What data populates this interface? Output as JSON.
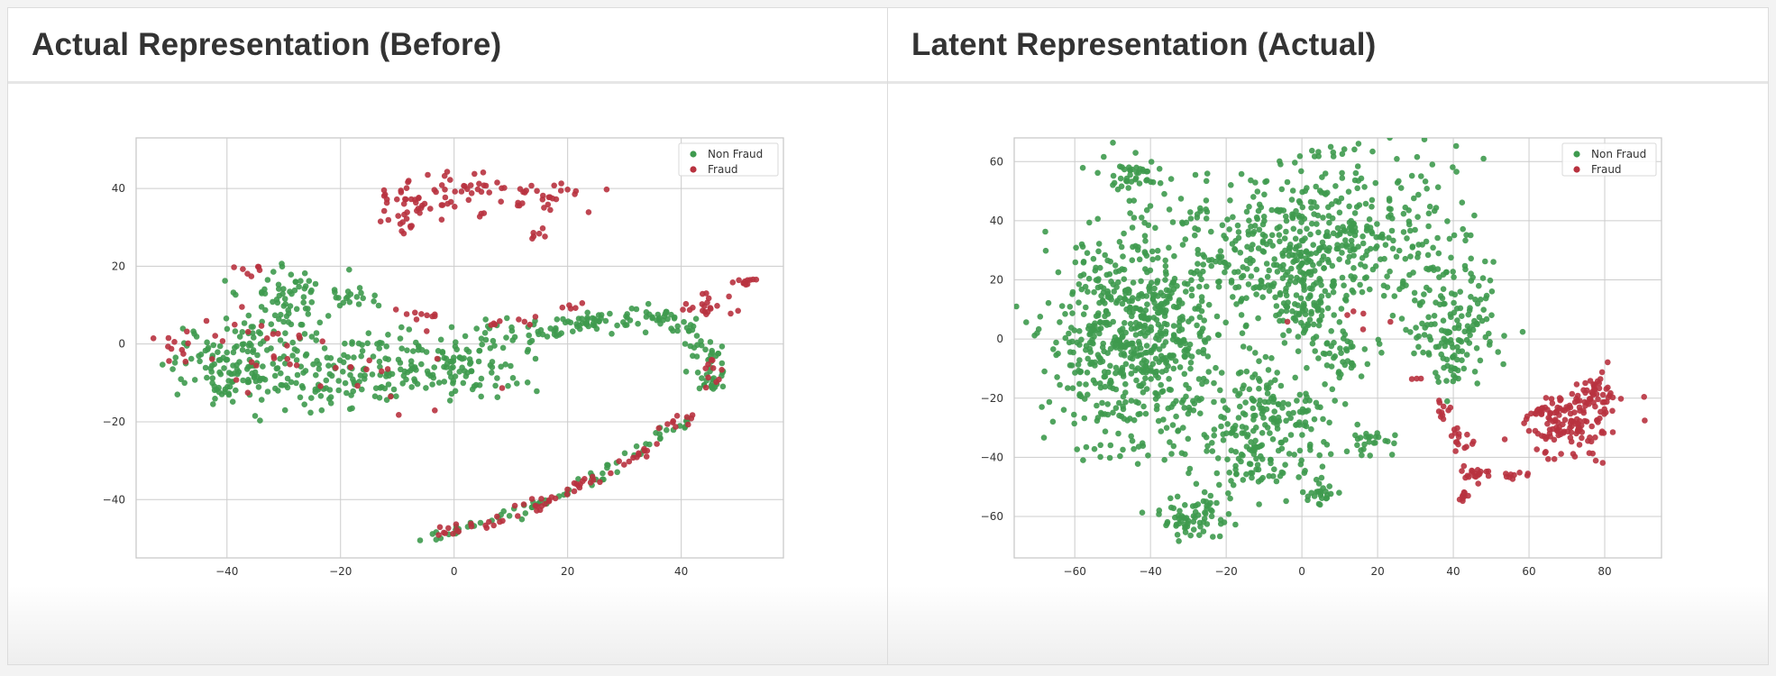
{
  "panels": [
    {
      "title": "Actual Representation (Before)"
    },
    {
      "title": "Latent Representation (Actual)"
    }
  ],
  "colors": {
    "non_fraud": "#3e9a4e",
    "fraud": "#b8323f",
    "grid": "#cccccc",
    "axes": "#c6c6c6"
  },
  "chart_data": [
    {
      "type": "scatter",
      "title": "",
      "xlabel": "",
      "ylabel": "",
      "xlim": [
        -56,
        58
      ],
      "ylim": [
        -55,
        53
      ],
      "xticks": [
        -40,
        -20,
        0,
        20,
        40
      ],
      "yticks": [
        -40,
        -20,
        0,
        20,
        40
      ],
      "grid": true,
      "legend": "top-right",
      "series": [
        {
          "name": "Non Fraud",
          "color": "#3e9a4e",
          "clusters": [
            {
              "cx": -40,
              "cy": -6,
              "sx": 5,
              "sy": 5,
              "n": 120
            },
            {
              "cx": -32,
              "cy": 7,
              "sx": 5,
              "sy": 5,
              "n": 60
            },
            {
              "cx": -28,
              "cy": 15,
              "sx": 3,
              "sy": 3,
              "n": 25
            },
            {
              "cx": -22,
              "cy": -8,
              "sx": 7,
              "sy": 5,
              "n": 100
            },
            {
              "cx": -18,
              "cy": 12,
              "sx": 3,
              "sy": 2,
              "n": 20
            },
            {
              "cx": -10,
              "cy": -6,
              "sx": 4,
              "sy": 4,
              "n": 60
            },
            {
              "cx": 0,
              "cy": -4,
              "sx": 4,
              "sy": 4,
              "n": 60
            },
            {
              "cx": 8,
              "cy": -3,
              "sx": 3,
              "sy": 5,
              "n": 40
            }
          ],
          "curves": [
            {
              "pts": [
                [
                  13,
                  2
                ],
                [
                  20,
                  4
                ],
                [
                  28,
                  7
                ],
                [
                  36,
                  7
                ],
                [
                  42,
                  4
                ],
                [
                  46,
                  -4
                ],
                [
                  45,
                  -12
                ]
              ],
              "n": 140,
              "jitter": 1.6
            },
            {
              "pts": [
                [
                  -5,
                  -50
                ],
                [
                  8,
                  -45
                ],
                [
                  20,
                  -38
                ],
                [
                  30,
                  -30
                ],
                [
                  36,
                  -24
                ],
                [
                  42,
                  -20
                ]
              ],
              "n": 70,
              "jitter": 0.8
            }
          ]
        },
        {
          "name": "Fraud",
          "color": "#b8323f",
          "clusters": [
            {
              "cx": -8,
              "cy": 35,
              "sx": 3.5,
              "sy": 4,
              "n": 45
            },
            {
              "cx": 2,
              "cy": 40,
              "sx": 3,
              "sy": 3,
              "n": 30
            },
            {
              "cx": 15,
              "cy": 38,
              "sx": 4,
              "sy": 2,
              "n": 30
            },
            {
              "cx": 15,
              "cy": 28,
              "sx": 0.8,
              "sy": 1,
              "n": 6
            },
            {
              "cx": -6,
              "cy": 7,
              "sx": 2,
              "sy": 1.5,
              "n": 10
            },
            {
              "cx": 10,
              "cy": 5,
              "sx": 3,
              "sy": 1,
              "n": 8
            },
            {
              "cx": 20,
              "cy": 10,
              "sx": 2,
              "sy": 1,
              "n": 5
            },
            {
              "cx": -50,
              "cy": 0,
              "sx": 1.5,
              "sy": 2,
              "n": 10
            },
            {
              "cx": -36,
              "cy": 20,
              "sx": 2,
              "sy": 1,
              "n": 6
            },
            {
              "cx": -32,
              "cy": 0,
              "sx": 8,
              "sy": 7,
              "n": 25
            },
            {
              "cx": -15,
              "cy": -7,
              "sx": 8,
              "sy": 6,
              "n": 15
            },
            {
              "cx": 45,
              "cy": 9,
              "sx": 3,
              "sy": 2,
              "n": 20
            },
            {
              "cx": 51,
              "cy": 16,
              "sx": 1.5,
              "sy": 1,
              "n": 12
            },
            {
              "cx": 40,
              "cy": -20,
              "sx": 2,
              "sy": 1.5,
              "n": 10
            }
          ],
          "curves": [
            {
              "pts": [
                [
                  -3,
                  -49
                ],
                [
                  8,
                  -45
                ],
                [
                  20,
                  -38
                ],
                [
                  30,
                  -31
                ],
                [
                  36,
                  -25
                ]
              ],
              "n": 60,
              "jitter": 0.7
            },
            {
              "pts": [
                [
                  44,
                  -4
                ],
                [
                  46,
                  -8
                ],
                [
                  45,
                  -12
                ]
              ],
              "n": 10,
              "jitter": 1.0
            }
          ]
        }
      ]
    },
    {
      "type": "scatter",
      "title": "",
      "xlabel": "",
      "ylabel": "",
      "xlim": [
        -76,
        95
      ],
      "ylim": [
        -74,
        68
      ],
      "xticks": [
        -60,
        -40,
        -20,
        0,
        20,
        40,
        60,
        80
      ],
      "yticks": [
        -60,
        -40,
        -20,
        0,
        20,
        40,
        60
      ],
      "grid": true,
      "legend": "top-right",
      "series": [
        {
          "name": "Non Fraud",
          "color": "#3e9a4e",
          "clusters": [
            {
              "cx": -45,
              "cy": 0,
              "sx": 11,
              "sy": 18,
              "n": 650
            },
            {
              "cx": -44,
              "cy": 55,
              "sx": 4,
              "sy": 2.5,
              "n": 40
            },
            {
              "cx": -10,
              "cy": 30,
              "sx": 12,
              "sy": 12,
              "n": 250
            },
            {
              "cx": 15,
              "cy": 35,
              "sx": 14,
              "sy": 14,
              "n": 300
            },
            {
              "cx": 40,
              "cy": 5,
              "sx": 6,
              "sy": 12,
              "n": 150
            },
            {
              "cx": -10,
              "cy": -30,
              "sx": 9,
              "sy": 12,
              "n": 250
            },
            {
              "cx": -28,
              "cy": -60,
              "sx": 5,
              "sy": 3.5,
              "n": 70
            },
            {
              "cx": 0,
              "cy": 10,
              "sx": 5,
              "sy": 5,
              "n": 60
            },
            {
              "cx": 5,
              "cy": -52,
              "sx": 2,
              "sy": 2,
              "n": 20
            },
            {
              "cx": 18,
              "cy": -34,
              "sx": 3,
              "sy": 3,
              "n": 25
            },
            {
              "cx": 10,
              "cy": -5,
              "sx": 5,
              "sy": 5,
              "n": 40
            }
          ],
          "curves": []
        },
        {
          "name": "Fraud",
          "color": "#b8323f",
          "clusters": [
            {
              "cx": 70,
              "cy": -28,
              "sx": 6,
              "sy": 5,
              "n": 140
            },
            {
              "cx": 78,
              "cy": -18,
              "sx": 3,
              "sy": 3,
              "n": 40
            },
            {
              "cx": 43,
              "cy": -53,
              "sx": 0.6,
              "sy": 0.8,
              "n": 10
            },
            {
              "cx": 45,
              "cy": -46,
              "sx": 2,
              "sy": 1.5,
              "n": 18
            },
            {
              "cx": 42,
              "cy": -33,
              "sx": 1.5,
              "sy": 2.5,
              "n": 15
            },
            {
              "cx": 37,
              "cy": -24,
              "sx": 1.5,
              "sy": 2,
              "n": 10
            },
            {
              "cx": 56,
              "cy": -46,
              "sx": 2.5,
              "sy": 1,
              "n": 10
            },
            {
              "cx": 30,
              "cy": -15,
              "sx": 1,
              "sy": 1,
              "n": 3
            },
            {
              "cx": 15,
              "cy": 5,
              "sx": 6,
              "sy": 6,
              "n": 6
            }
          ],
          "curves": []
        }
      ]
    }
  ]
}
